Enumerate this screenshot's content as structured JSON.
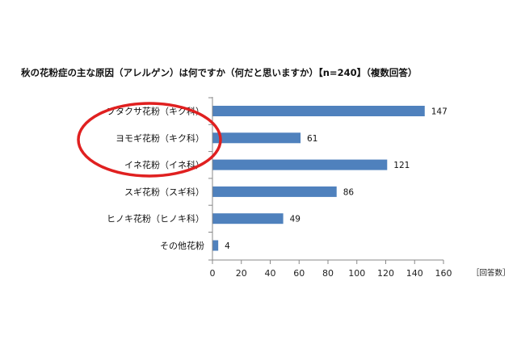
{
  "chart_data": {
    "type": "bar",
    "orientation": "horizontal",
    "title": "秋の花粉症の主な原因（アレルゲン）は何ですか（何だと思いますか）【n=240】（複数回答）",
    "categories": [
      "ブタクサ花粉（キク科）",
      "ヨモギ花粉（キク科）",
      "イネ花粉（イネ科）",
      "スギ花粉（スギ科）",
      "ヒノキ花粉（ヒノキ科）",
      "その他花粉"
    ],
    "values": [
      147,
      61,
      121,
      86,
      49,
      4
    ],
    "xlim": [
      0,
      160
    ],
    "xticks": [
      "0",
      "20",
      "40",
      "60",
      "80",
      "100",
      "120",
      "140",
      "160"
    ],
    "unit_label": "［回答数］",
    "grid": false,
    "bar_color": "#4f81bd",
    "annotation": {
      "shape": "ellipse",
      "color": "#e02020",
      "encloses": [
        "ブタクサ花粉（キク科）",
        "ヨモギ花粉（キク科）",
        "イネ花粉（イネ科）"
      ]
    }
  }
}
